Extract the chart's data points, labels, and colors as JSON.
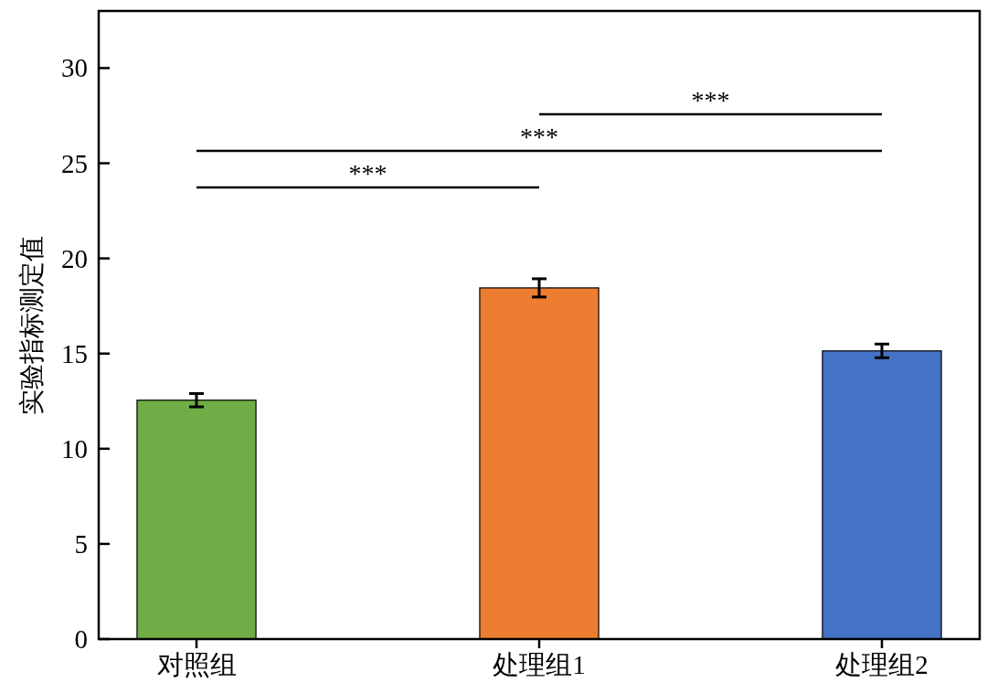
{
  "chart_data": {
    "type": "bar",
    "ylabel": "实验指标测定值",
    "categories": [
      "对照组",
      "处理组1",
      "处理组2"
    ],
    "values": [
      12.55,
      18.45,
      15.14
    ],
    "colors": [
      "#70ad47",
      "#ed7d31",
      "#4472c4"
    ],
    "errors": [
      0.35,
      0.48,
      0.36
    ],
    "ylim": [
      0,
      33
    ],
    "yticks": [
      0,
      5,
      10,
      15,
      20,
      25,
      30
    ],
    "annotations": [
      "***",
      "***",
      "***"
    ],
    "grid": false
  }
}
